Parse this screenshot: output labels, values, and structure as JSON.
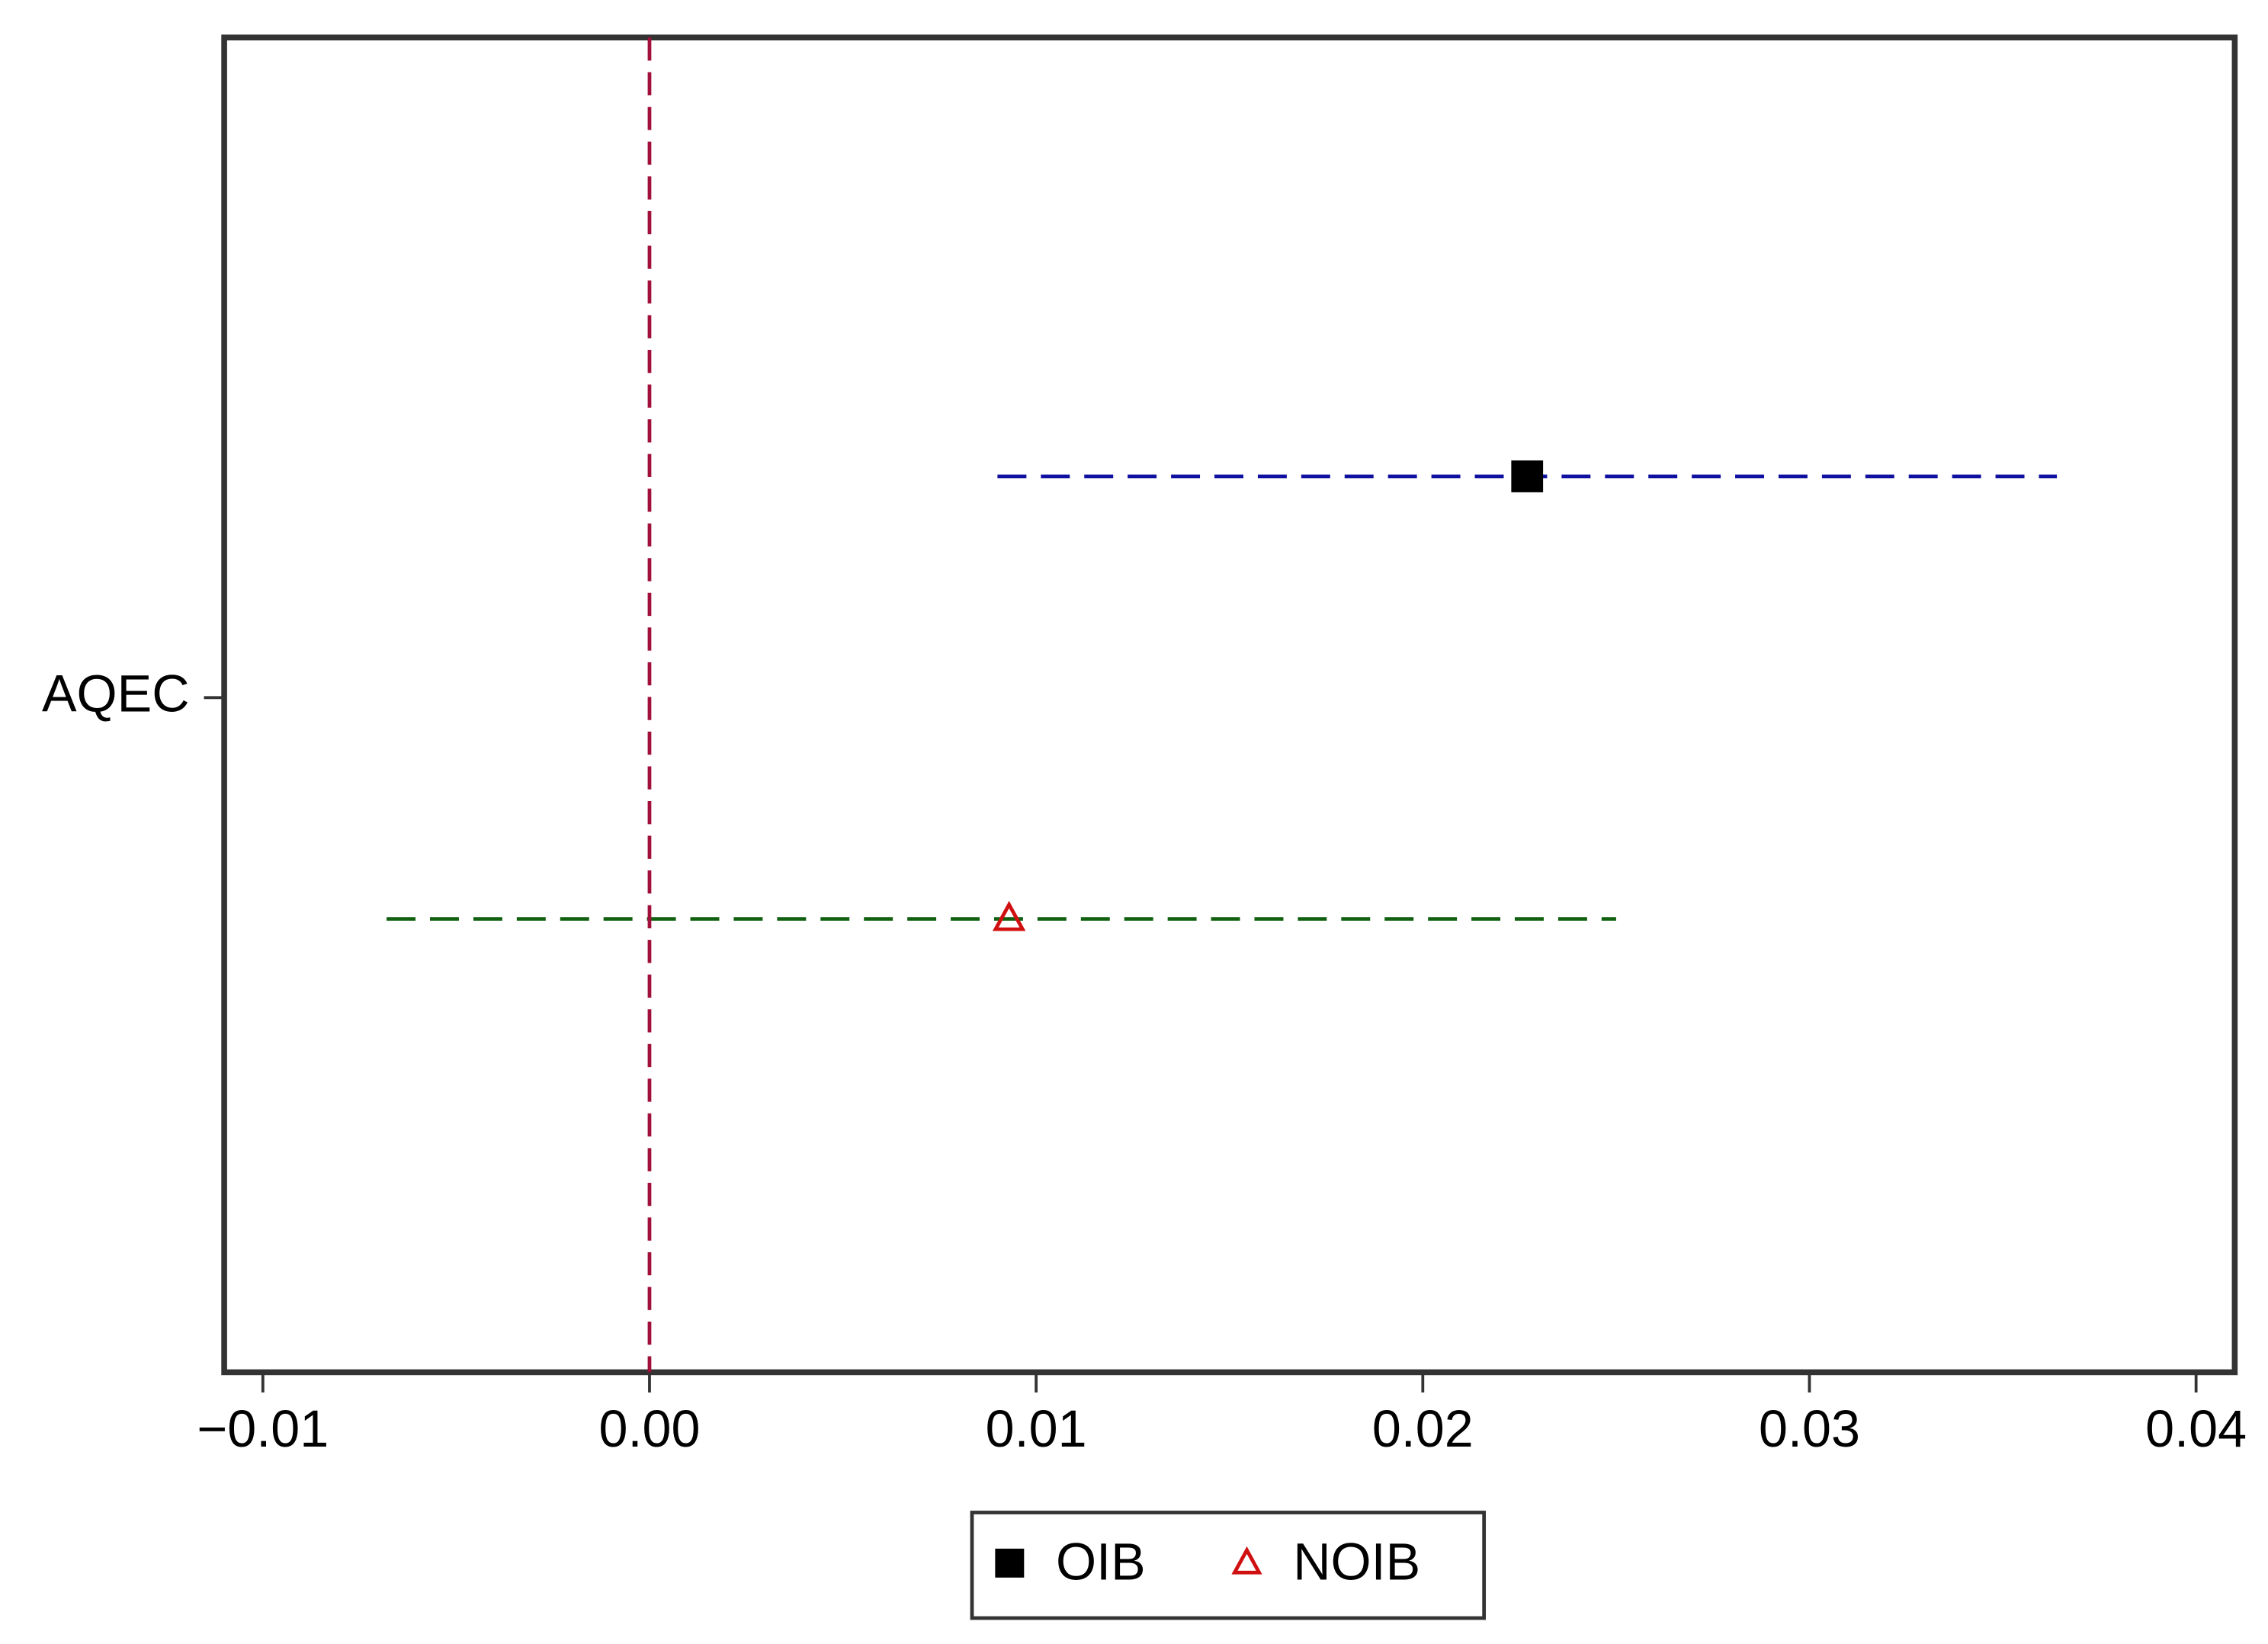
{
  "chart_data": {
    "type": "forest",
    "categories": [
      "AQEC"
    ],
    "xlim": [
      -0.011,
      0.041
    ],
    "xticks": [
      {
        "value": -0.01,
        "label": "−0.01"
      },
      {
        "value": 0,
        "label": "0.00"
      },
      0.01,
      0.02,
      0.03,
      0.04
    ],
    "reference_line": {
      "value": 0,
      "color": "#a0103a"
    },
    "series": [
      {
        "name": "OIB",
        "color": "#000000",
        "marker": "square",
        "ci_color": "#1010a0",
        "values": [
          0.0227
        ],
        "lower": [
          0.009
        ],
        "upper": [
          0.0364
        ]
      },
      {
        "name": "NOIB",
        "color": "#d01010",
        "marker": "triangle",
        "ci_color": "#106010",
        "values": [
          0.0093
        ],
        "lower": [
          -0.0068
        ],
        "upper": [
          0.025
        ]
      }
    ],
    "legend": "bottom"
  }
}
